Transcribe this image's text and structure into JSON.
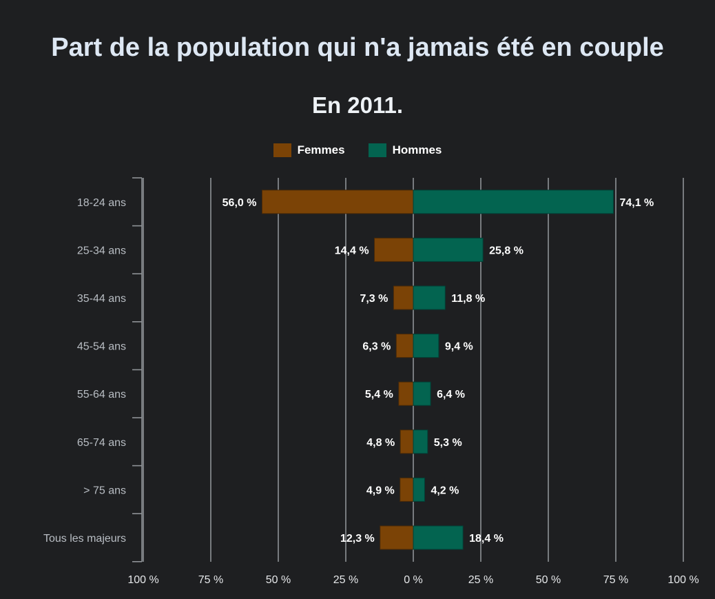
{
  "chart_data": {
    "type": "bar",
    "orientation": "horizontal-diverging",
    "title": "Part de la population qui n'a jamais été en couple",
    "subtitle": "En 2011.",
    "legend_position": "top-center",
    "grid": true,
    "categories": [
      "18-24 ans",
      "25-34 ans",
      "35-44 ans",
      "45-54 ans",
      "55-64 ans",
      "65-74 ans",
      "> 75 ans",
      "Tous les majeurs"
    ],
    "series": [
      {
        "name": "Femmes",
        "color": "#7b4306",
        "direction": "left",
        "values": [
          56.0,
          14.4,
          7.3,
          6.3,
          5.4,
          4.8,
          4.9,
          12.3
        ],
        "labels": [
          "56,0 %",
          "14,4 %",
          "7,3 %",
          "6,3 %",
          "5,4 %",
          "4,8 %",
          "4,9 %",
          "12,3 %"
        ]
      },
      {
        "name": "Hommes",
        "color": "#036450",
        "direction": "right",
        "values": [
          74.1,
          25.8,
          11.8,
          9.4,
          6.4,
          5.3,
          4.2,
          18.4
        ],
        "labels": [
          "74,1 %",
          "25,8 %",
          "11,8 %",
          "9,4 %",
          "6,4 %",
          "5,3 %",
          "4,2 %",
          "18,4 %"
        ]
      }
    ],
    "xlim": [
      -100,
      100
    ],
    "x_ticks": [
      -100,
      -75,
      -50,
      -25,
      0,
      25,
      50,
      75,
      100
    ],
    "x_tick_labels": [
      "100 %",
      "75 %",
      "50 %",
      "25 %",
      "0 %",
      "25 %",
      "50 %",
      "75 %",
      "100 %"
    ]
  }
}
